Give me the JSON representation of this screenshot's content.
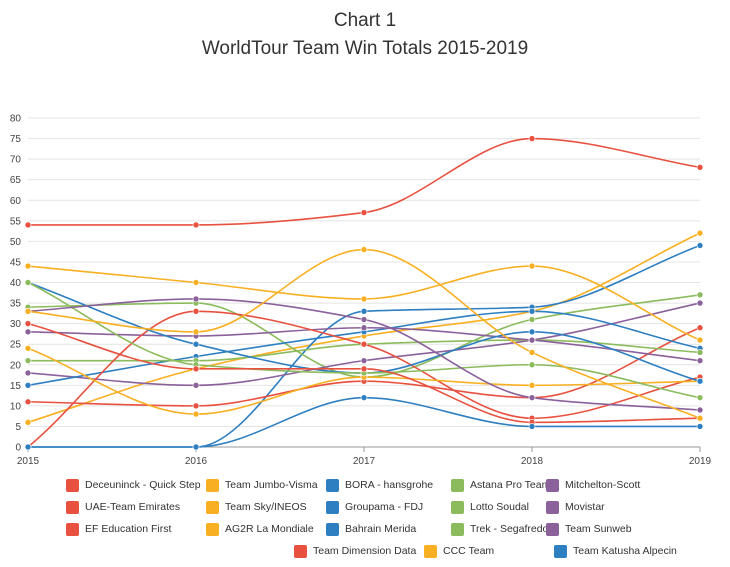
{
  "chart_data": {
    "type": "line",
    "title": "Chart 1",
    "subtitle": "WorldTour Team Win Totals 2015-2019",
    "xlabel": "",
    "ylabel": "",
    "x": [
      "2015",
      "2016",
      "2017",
      "2018",
      "2019"
    ],
    "y_ticks": [
      "0",
      "5",
      "10",
      "15",
      "20",
      "25",
      "30",
      "35",
      "40",
      "45",
      "50",
      "55",
      "60",
      "65",
      "70",
      "75",
      "80"
    ],
    "ylim": [
      0,
      80
    ],
    "grid": true,
    "legend_position": "bottom",
    "series": [
      {
        "name": "Deceuninck - Quick Step",
        "color": "#e8513f",
        "values": [
          54,
          54,
          57,
          75,
          68
        ]
      },
      {
        "name": "Team Jumbo-Visma",
        "color": "#f8b022",
        "values": [
          6,
          19,
          27,
          33,
          52
        ]
      },
      {
        "name": "BORA - hansgrohe",
        "color": "#2d7fc1",
        "values": [
          0,
          0,
          33,
          34,
          49
        ]
      },
      {
        "name": "Astana Pro Team",
        "color": "#8bbb5c",
        "values": [
          34,
          35,
          17,
          31,
          37
        ]
      },
      {
        "name": "Mitchelton-Scott",
        "color": "#8b619b",
        "values": [
          18,
          15,
          21,
          26,
          35
        ]
      },
      {
        "name": "UAE-Team Emirates",
        "color": "#e8513f",
        "values": [
          11,
          10,
          16,
          12,
          29
        ]
      },
      {
        "name": "Team Sky/INEOS",
        "color": "#f8b022",
        "values": [
          44,
          40,
          36,
          44,
          26
        ]
      },
      {
        "name": "Groupama - FDJ",
        "color": "#2d7fc1",
        "values": [
          15,
          22,
          28,
          33,
          24
        ]
      },
      {
        "name": "Lotto Soudal",
        "color": "#8bbb5c",
        "values": [
          21,
          21,
          25,
          26,
          23
        ]
      },
      {
        "name": "Movistar",
        "color": "#8b619b",
        "values": [
          28,
          27,
          29,
          26,
          21
        ]
      },
      {
        "name": "EF Education First",
        "color": "#e8513f",
        "values": [
          0,
          33,
          25,
          7,
          17
        ]
      },
      {
        "name": "AG2R La Mondiale",
        "color": "#f8b022",
        "values": [
          24,
          8,
          17,
          15,
          16
        ]
      },
      {
        "name": "Bahrain Merida",
        "color": "#2d7fc1",
        "values": [
          40,
          25,
          18,
          28,
          16
        ]
      },
      {
        "name": "Trek - Segafredo",
        "color": "#8bbb5c",
        "values": [
          40,
          20,
          18,
          20,
          12
        ]
      },
      {
        "name": "Team Sunweb",
        "color": "#8b619b",
        "values": [
          33,
          36,
          31,
          12,
          9
        ]
      },
      {
        "name": "Team Dimension Data",
        "color": "#e8513f",
        "values": [
          30,
          19,
          19,
          6,
          7
        ]
      },
      {
        "name": "CCC Team",
        "color": "#f8b022",
        "values": [
          33,
          28,
          48,
          23,
          7
        ]
      },
      {
        "name": "Team Katusha Alpecin",
        "color": "#2d7fc1",
        "values": [
          0,
          0,
          12,
          5,
          5
        ]
      }
    ]
  }
}
